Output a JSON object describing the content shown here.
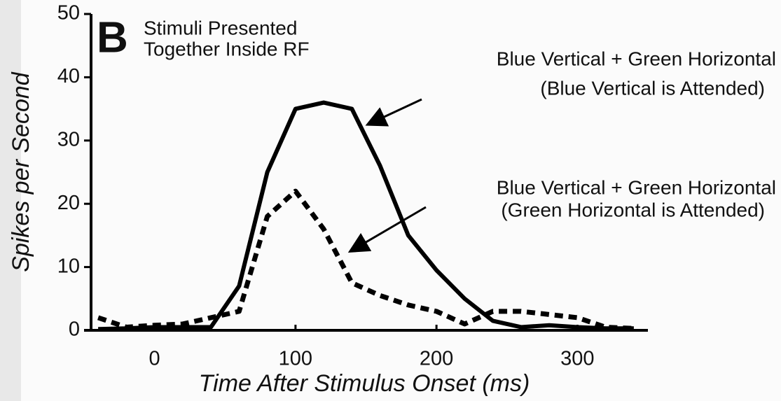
{
  "chart_data": {
    "type": "line",
    "panel_label": "B",
    "subtitle_lines": [
      "Stimuli Presented",
      "Together Inside RF"
    ],
    "xlabel": "Time After Stimulus Onset (ms)",
    "ylabel": "Spikes per Second",
    "x": [
      -40,
      -20,
      0,
      20,
      40,
      60,
      80,
      100,
      120,
      140,
      160,
      180,
      200,
      220,
      240,
      260,
      280,
      300,
      320,
      340
    ],
    "xlim": [
      -50,
      350
    ],
    "xticks": [
      0,
      100,
      200,
      300
    ],
    "ylim": [
      0,
      50
    ],
    "yticks": [
      0,
      10,
      20,
      30,
      40,
      50
    ],
    "series": [
      {
        "name": "Blue Vertical + Green Horizontal",
        "label": "(Blue Vertical is Attended)",
        "color": "#000000",
        "dash": false,
        "values": [
          0.2,
          0.3,
          0.5,
          0.5,
          0.5,
          7,
          25,
          35,
          36,
          35,
          26,
          15,
          9.5,
          5,
          1.5,
          0.5,
          0.8,
          0.5,
          0.3,
          0.3
        ]
      },
      {
        "name": "Blue Vertical + Green Horizontal",
        "label": "(Green Horizontal is Attended)",
        "color": "#000000",
        "dash": true,
        "values": [
          2,
          0.5,
          0.8,
          1,
          2,
          3,
          18,
          22,
          16,
          7.5,
          5.5,
          4,
          3,
          1,
          3,
          3,
          2.5,
          2,
          0.5,
          0.3
        ]
      }
    ]
  }
}
